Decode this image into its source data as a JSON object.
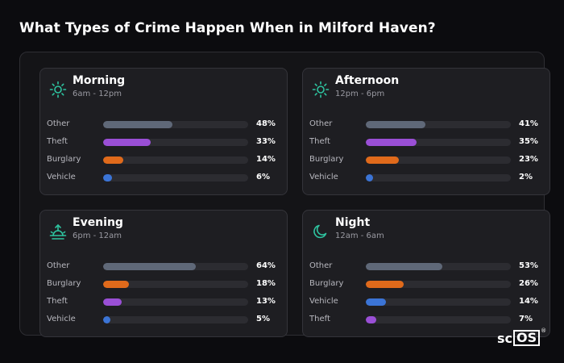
{
  "title": "What Types of Crime Happen When in Milford Haven?",
  "logo": {
    "text_left": "sc",
    "text_boxed": "OS",
    "mark": "®"
  },
  "colors": {
    "icon": "#2ec4a0",
    "Other": "#5f6878",
    "Theft": "#9a4fd6",
    "Burglary": "#e06a1b",
    "Vehicle": "#3b74d6"
  },
  "cards": [
    {
      "title": "Morning",
      "subtitle": "6am - 12pm",
      "icon": "sun-icon",
      "rows": [
        {
          "label": "Other",
          "value": 48,
          "pct": "48%"
        },
        {
          "label": "Theft",
          "value": 33,
          "pct": "33%"
        },
        {
          "label": "Burglary",
          "value": 14,
          "pct": "14%"
        },
        {
          "label": "Vehicle",
          "value": 6,
          "pct": "6%"
        }
      ]
    },
    {
      "title": "Afternoon",
      "subtitle": "12pm - 6pm",
      "icon": "sun-icon",
      "rows": [
        {
          "label": "Other",
          "value": 41,
          "pct": "41%"
        },
        {
          "label": "Theft",
          "value": 35,
          "pct": "35%"
        },
        {
          "label": "Burglary",
          "value": 23,
          "pct": "23%"
        },
        {
          "label": "Vehicle",
          "value": 2,
          "pct": "2%"
        }
      ]
    },
    {
      "title": "Evening",
      "subtitle": "6pm - 12am",
      "icon": "sunset-icon",
      "rows": [
        {
          "label": "Other",
          "value": 64,
          "pct": "64%"
        },
        {
          "label": "Burglary",
          "value": 18,
          "pct": "18%"
        },
        {
          "label": "Theft",
          "value": 13,
          "pct": "13%"
        },
        {
          "label": "Vehicle",
          "value": 5,
          "pct": "5%"
        }
      ]
    },
    {
      "title": "Night",
      "subtitle": "12am - 6am",
      "icon": "moon-icon",
      "rows": [
        {
          "label": "Other",
          "value": 53,
          "pct": "53%"
        },
        {
          "label": "Burglary",
          "value": 26,
          "pct": "26%"
        },
        {
          "label": "Vehicle",
          "value": 14,
          "pct": "14%"
        },
        {
          "label": "Theft",
          "value": 7,
          "pct": "7%"
        }
      ]
    }
  ]
}
